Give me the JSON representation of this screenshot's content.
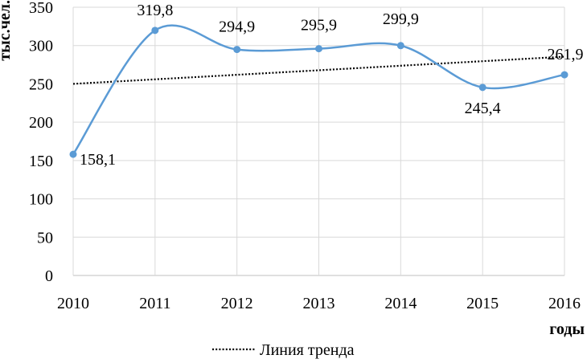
{
  "chart_data": {
    "type": "line",
    "ylabel": "тыс.чел.",
    "xlabel": "годы",
    "x": [
      "2010",
      "2011",
      "2012",
      "2013",
      "2014",
      "2015",
      "2016"
    ],
    "ylim": [
      0,
      350
    ],
    "yticks": [
      0,
      50,
      100,
      150,
      200,
      250,
      300,
      350
    ],
    "grid": true,
    "series": [
      {
        "values": [
          158.1,
          319.8,
          294.9,
          295.9,
          299.9,
          245.4,
          261.9
        ],
        "data_labels": [
          "158,1",
          "319,8",
          "294,9",
          "295,9",
          "299,9",
          "245,4",
          "261,9"
        ],
        "color": "#5B9BD5",
        "smooth": true
      }
    ],
    "trendline": {
      "name": "Линия тренда",
      "values": [
        250,
        285.5
      ],
      "color": "#000000",
      "style": "dotted"
    },
    "legend": "bottom-center"
  }
}
